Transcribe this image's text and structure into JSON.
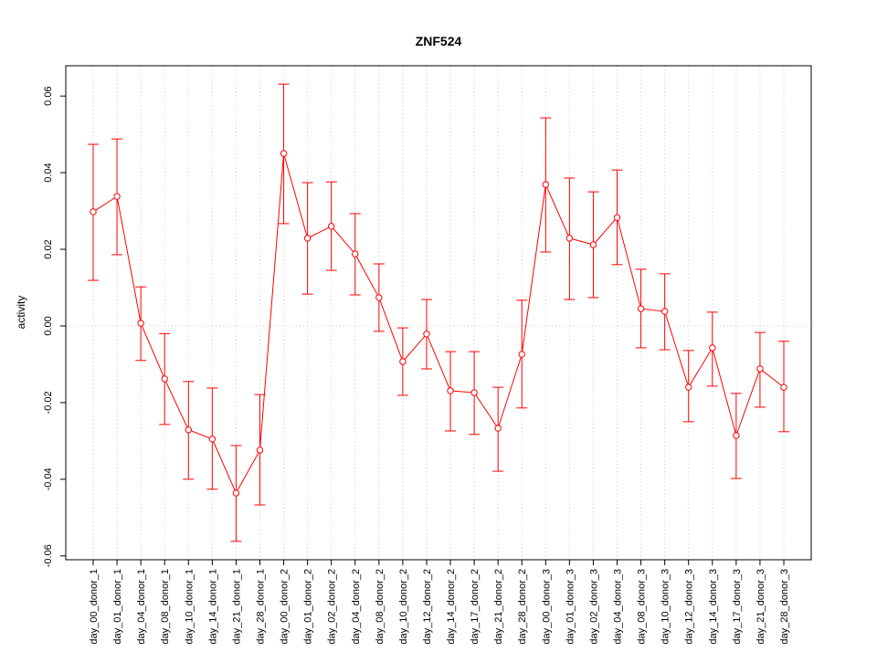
{
  "chart_data": {
    "type": "line",
    "title": "ZNF524",
    "xlabel": "",
    "ylabel": "activity",
    "ylim": [
      -0.061,
      0.0679
    ],
    "yticks": [
      -0.06,
      -0.04,
      -0.02,
      0.0,
      0.02,
      0.04,
      0.06
    ],
    "ytick_labels": [
      "-0.06",
      "-0.04",
      "-0.02",
      "0.00",
      "0.02",
      "0.04",
      "0.06"
    ],
    "grid": "dotted vertical at categories, dotted horizontal at 0",
    "color": "#ff0000",
    "categories": [
      "day_00_donor_1",
      "day_01_donor_1",
      "day_04_donor_1",
      "day_08_donor_1",
      "day_10_donor_1",
      "day_14_donor_1",
      "day_21_donor_1",
      "day_28_donor_1",
      "day_00_donor_2",
      "day_01_donor_2",
      "day_02_donor_2",
      "day_04_donor_2",
      "day_08_donor_2",
      "day_10_donor_2",
      "day_12_donor_2",
      "day_14_donor_2",
      "day_17_donor_2",
      "day_21_donor_2",
      "day_28_donor_2",
      "day_00_donor_3",
      "day_01_donor_3",
      "day_02_donor_3",
      "day_04_donor_3",
      "day_08_donor_3",
      "day_10_donor_3",
      "day_12_donor_3",
      "day_14_donor_3",
      "day_17_donor_3",
      "day_21_donor_3",
      "day_28_donor_3"
    ],
    "values": [
      0.0298,
      0.0338,
      0.0007,
      -0.0138,
      -0.0271,
      -0.0295,
      -0.0436,
      -0.0324,
      0.045,
      0.0229,
      0.026,
      0.0188,
      0.0074,
      -0.0093,
      -0.0021,
      -0.0169,
      -0.0174,
      -0.0267,
      -0.0074,
      0.0369,
      0.0229,
      0.0212,
      0.0283,
      0.0045,
      0.0038,
      -0.016,
      -0.0057,
      -0.0286,
      -0.0112,
      -0.016
    ],
    "upper": [
      0.0474,
      0.0488,
      0.0102,
      -0.002,
      -0.0145,
      -0.0162,
      -0.0312,
      -0.0179,
      0.0631,
      0.0374,
      0.0376,
      0.0293,
      0.0162,
      -0.0005,
      0.0069,
      -0.0067,
      -0.0067,
      -0.016,
      0.0067,
      0.0543,
      0.0386,
      0.035,
      0.0407,
      0.0148,
      0.0136,
      -0.0064,
      0.0036,
      -0.0176,
      -0.0017,
      -0.004
    ],
    "lower": [
      0.0119,
      0.0186,
      -0.009,
      -0.0257,
      -0.04,
      -0.0426,
      -0.0562,
      -0.0467,
      0.0267,
      0.0083,
      0.0145,
      0.0081,
      -0.0014,
      -0.0181,
      -0.0112,
      -0.0274,
      -0.0283,
      -0.0379,
      -0.0214,
      0.0193,
      0.0069,
      0.0074,
      0.016,
      -0.0057,
      -0.0062,
      -0.025,
      -0.0157,
      -0.0398,
      -0.0212,
      -0.0276
    ]
  }
}
